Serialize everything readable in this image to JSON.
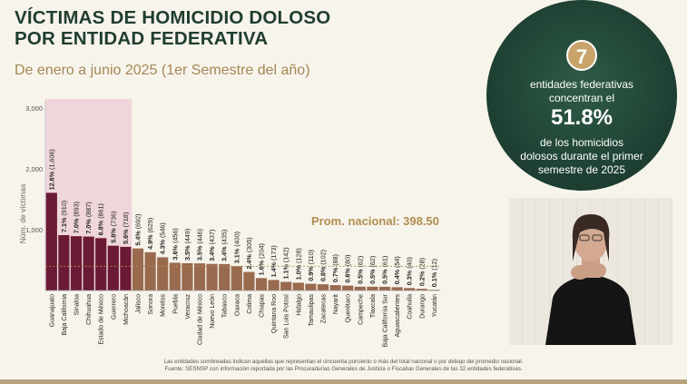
{
  "title_line1": "VÍCTIMAS DE HOMICIDIO DOLOSO",
  "title_line2": "POR ENTIDAD FEDERATIVA",
  "subtitle": "De enero a junio 2025 (1er Semestre del año)",
  "prom_label": "Prom. nacional: 398.50",
  "circle": {
    "number": "7",
    "line1": "entidades federativas",
    "line2": "concentran el",
    "big": "51.8%",
    "line3": "de los homicidios",
    "line4": "dolosos durante el primer",
    "line5": "semestre de 2025"
  },
  "footer_line1": "Las entidades sombreadas indican aquellas que representan el cincuenta porciento o más del total nacional o por debajo del promedio nacional.",
  "footer_line2": "Fuente: SESNSP con información reportada por las Procuradurías Generales de Justicia o Fiscalías Generales de las 32 entidades federativas.",
  "colors": {
    "dark": "#6b1a33",
    "light": "#9a6a4e",
    "shade": "#efd6db",
    "accent": "#b08e4e"
  },
  "chart_data": {
    "type": "bar",
    "ylabel": "Núm. de víctimas",
    "ylim": [
      0,
      3000
    ],
    "yticks": [
      "1,000",
      "2,000",
      "3,000"
    ],
    "average": 398.5,
    "categories": [
      "Guanajuato",
      "Baja California",
      "Sinaloa",
      "Chihuahua",
      "Estado de México",
      "Guerrero",
      "Michoacán",
      "Jalisco",
      "Sonora",
      "Morelos",
      "Puebla",
      "Veracruz",
      "Ciudad de México",
      "Nuevo León",
      "Tabasco",
      "Oaxaca",
      "Colima",
      "Chiapas",
      "Quintana Roo",
      "San Luis Potosí",
      "Hidalgo",
      "Tamaulipas",
      "Zacatecas",
      "Nayarit",
      "Querétaro",
      "Campeche",
      "Tlaxcala",
      "Baja California Sur",
      "Aguascalientes",
      "Coahuila",
      "Durango",
      "Yucatán"
    ],
    "values": [
      1606,
      910,
      893,
      887,
      861,
      736,
      718,
      692,
      629,
      546,
      456,
      449,
      446,
      437,
      435,
      400,
      305,
      204,
      173,
      142,
      128,
      110,
      102,
      88,
      80,
      62,
      62,
      61,
      54,
      40,
      28,
      12
    ],
    "pcts": [
      "12.6%",
      "7.1%",
      "7.0%",
      "7.0%",
      "6.8%",
      "5.8%",
      "5.6%",
      "5.4%",
      "4.9%",
      "4.3%",
      "3.6%",
      "3.5%",
      "3.5%",
      "3.4%",
      "3.4%",
      "3.1%",
      "2.4%",
      "1.6%",
      "1.4%",
      "1.1%",
      "1.0%",
      "0.9%",
      "0.8%",
      "0.7%",
      "0.6%",
      "0.5%",
      "0.5%",
      "0.5%",
      "0.4%",
      "0.3%",
      "0.2%",
      "0.1%"
    ],
    "value_labels": [
      "(1,606)",
      "(910)",
      "(893)",
      "(887)",
      "(861)",
      "(736)",
      "(718)",
      "(692)",
      "(629)",
      "(546)",
      "(456)",
      "(449)",
      "(446)",
      "(437)",
      "(435)",
      "(400)",
      "(305)",
      "(204)",
      "(173)",
      "(142)",
      "(128)",
      "(110)",
      "(102)",
      "(88)",
      "(80)",
      "(62)",
      "(62)",
      "(61)",
      "(54)",
      "(40)",
      "(28)",
      "(12)"
    ],
    "highlighted_count": 7
  }
}
